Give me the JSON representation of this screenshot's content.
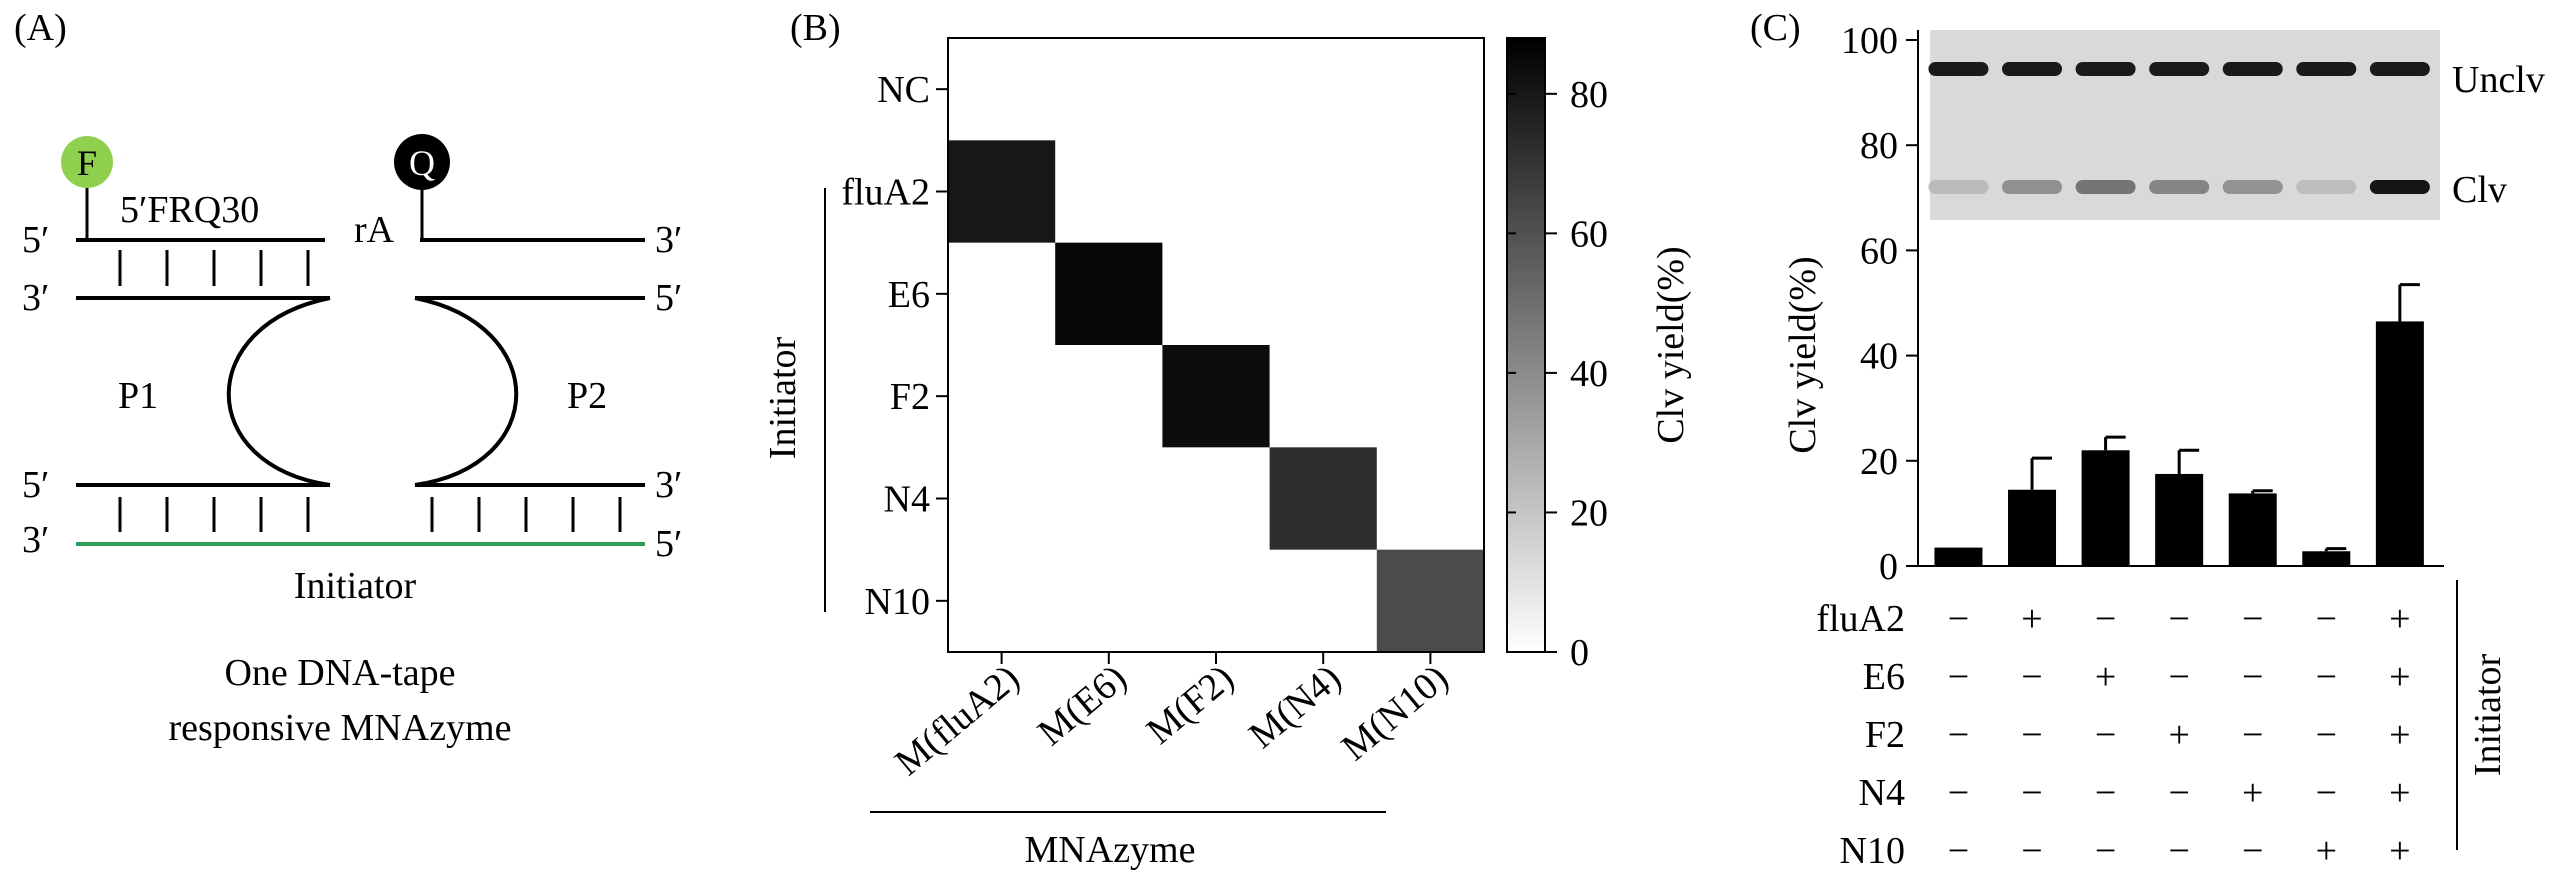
{
  "panels": {
    "a": {
      "label": "(A)",
      "fluor": "F",
      "quencher": "Q",
      "probe_name": "5′FRQ30",
      "ribo": "rA",
      "end_5": "5′",
      "end_3": "3′",
      "arm_left": "P1",
      "arm_right": "P2",
      "strand_name": "Initiator",
      "caption_line1": "One DNA-tape",
      "caption_line2": "responsive MNAzyme",
      "colors": {
        "fluor": "#8fd14f",
        "quencher": "#000000",
        "initiator_strand": "#2e9e5b"
      }
    },
    "b": {
      "label": "(B)",
      "y_axis_title": "Initiator",
      "x_axis_title": "MNAzyme",
      "colorbar_title": "Clv yield(%)",
      "colorbar_ticks": [
        "0",
        "20",
        "40",
        "60",
        "80"
      ]
    },
    "c": {
      "label": "(C)",
      "y_axis_title": "Clv yield(%)",
      "y_ticks": [
        "0",
        "20",
        "40",
        "60",
        "80",
        "100"
      ],
      "gel_band_labels": {
        "top": "Unclv",
        "bottom": "Clv"
      },
      "matrix_side_label": "Initiator",
      "matrix_rows": [
        "fluA2",
        "E6",
        "F2",
        "N4",
        "N10"
      ],
      "matrix": [
        [
          "−",
          "+",
          "−",
          "−",
          "−",
          "−",
          "+"
        ],
        [
          "−",
          "−",
          "+",
          "−",
          "−",
          "−",
          "+"
        ],
        [
          "−",
          "−",
          "−",
          "+",
          "−",
          "−",
          "+"
        ],
        [
          "−",
          "−",
          "−",
          "−",
          "+",
          "−",
          "+"
        ],
        [
          "−",
          "−",
          "−",
          "−",
          "−",
          "+",
          "+"
        ]
      ]
    }
  },
  "chart_data": [
    {
      "type": "heatmap",
      "rows": [
        "NC",
        "fluA2",
        "E6",
        "F2",
        "N4",
        "N10"
      ],
      "columns": [
        "M(fluA2)",
        "M(E6)",
        "M(F2)",
        "M(N4)",
        "M(N10)"
      ],
      "values": [
        [
          0,
          0,
          0,
          0,
          0
        ],
        [
          80,
          0,
          0,
          0,
          0
        ],
        [
          0,
          86,
          0,
          0,
          0
        ],
        [
          0,
          0,
          84,
          0,
          0
        ],
        [
          0,
          0,
          0,
          72,
          0
        ],
        [
          0,
          0,
          0,
          0,
          62
        ]
      ],
      "xlabel": "MNAzyme",
      "ylabel": "Initiator",
      "colorbar_label": "Clv yield(%)",
      "colorbar_range": [
        0,
        88
      ]
    },
    {
      "type": "bar",
      "values": [
        3.5,
        14.5,
        22,
        17.5,
        13.8,
        2.8,
        46.5
      ],
      "errors": [
        0,
        6,
        2.5,
        4.5,
        0.5,
        0.5,
        7
      ],
      "ylabel": "Clv yield(%)",
      "ylim": [
        0,
        100
      ]
    }
  ]
}
